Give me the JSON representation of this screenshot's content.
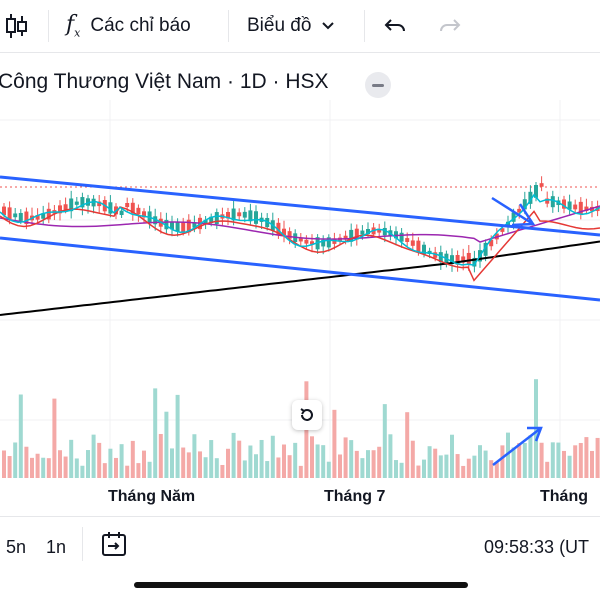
{
  "toolbar": {
    "indicators_label": "Các chỉ báo",
    "chart_type_label": "Biểu đồ"
  },
  "symbol": {
    "title": "Công Thương Việt Nam · 1D · HSX"
  },
  "axis": {
    "months": [
      "Tháng Năm",
      "Tháng 7",
      "Tháng"
    ]
  },
  "bottom_bar": {
    "ranges": [
      "5n",
      "1n"
    ],
    "clock": "09:58:33 (UT"
  },
  "colors": {
    "up": "#26a69a",
    "down": "#ef5350",
    "channel": "#2962ff",
    "ma_long": "#000000",
    "ma_mid": "#9c27b0",
    "ma_short": "#00bcd4",
    "ma_red": "#e53935"
  }
}
